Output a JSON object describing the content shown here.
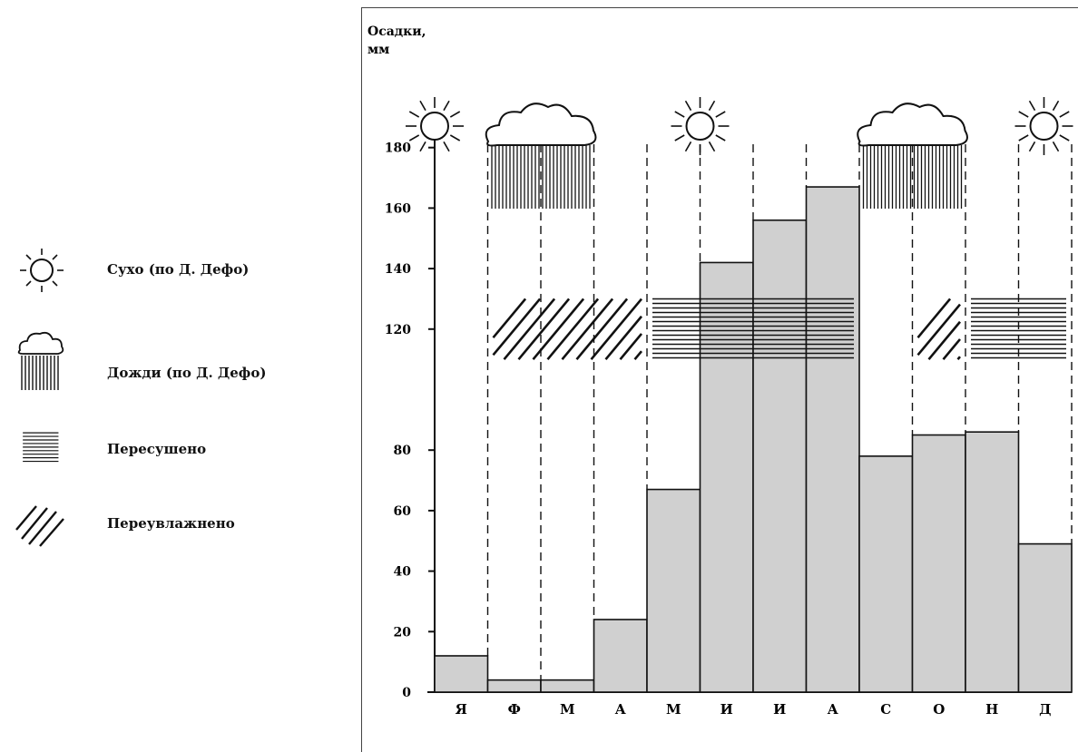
{
  "legend": {
    "items": [
      {
        "key": "dry",
        "icon": "sun-icon",
        "label": "Сухо (по Д. Дефо)"
      },
      {
        "key": "rain",
        "icon": "rain-cloud-icon",
        "label": "Дожди (по Д. Дефо)"
      },
      {
        "key": "overdried",
        "icon": "horizontal-hatch-icon",
        "label": "Пересушено"
      },
      {
        "key": "overwet",
        "icon": "diagonal-hatch-icon",
        "label": "Переувлажнено"
      }
    ]
  },
  "chart_data": {
    "type": "bar",
    "ylabel_line1": "Осадки,",
    "ylabel_line2": "мм",
    "categories": [
      "Я",
      "Ф",
      "М",
      "А",
      "М",
      "И",
      "И",
      "А",
      "С",
      "О",
      "Н",
      "Д"
    ],
    "values": [
      12,
      4,
      4,
      24,
      67,
      142,
      156,
      167,
      78,
      85,
      86,
      49
    ],
    "ylim": [
      0,
      190
    ],
    "yticks": [
      0,
      20,
      40,
      60,
      80,
      120,
      140,
      160,
      180
    ],
    "bar_color": "#d0d0d0",
    "weather_icons": [
      {
        "type": "sun",
        "month_index": 0
      },
      {
        "type": "rain",
        "month_index": 1
      },
      {
        "type": "sun",
        "month_index": 5
      },
      {
        "type": "rain",
        "month_index": 8
      },
      {
        "type": "sun",
        "month_index": 11
      }
    ],
    "hatch_regions": [
      {
        "type": "overwet",
        "from_month": 1,
        "to_month": 3
      },
      {
        "type": "overdried",
        "from_month": 4,
        "to_month": 7
      },
      {
        "type": "overwet",
        "from_month": 9,
        "to_month": 9
      },
      {
        "type": "overdried",
        "from_month": 10,
        "to_month": 11
      }
    ]
  }
}
